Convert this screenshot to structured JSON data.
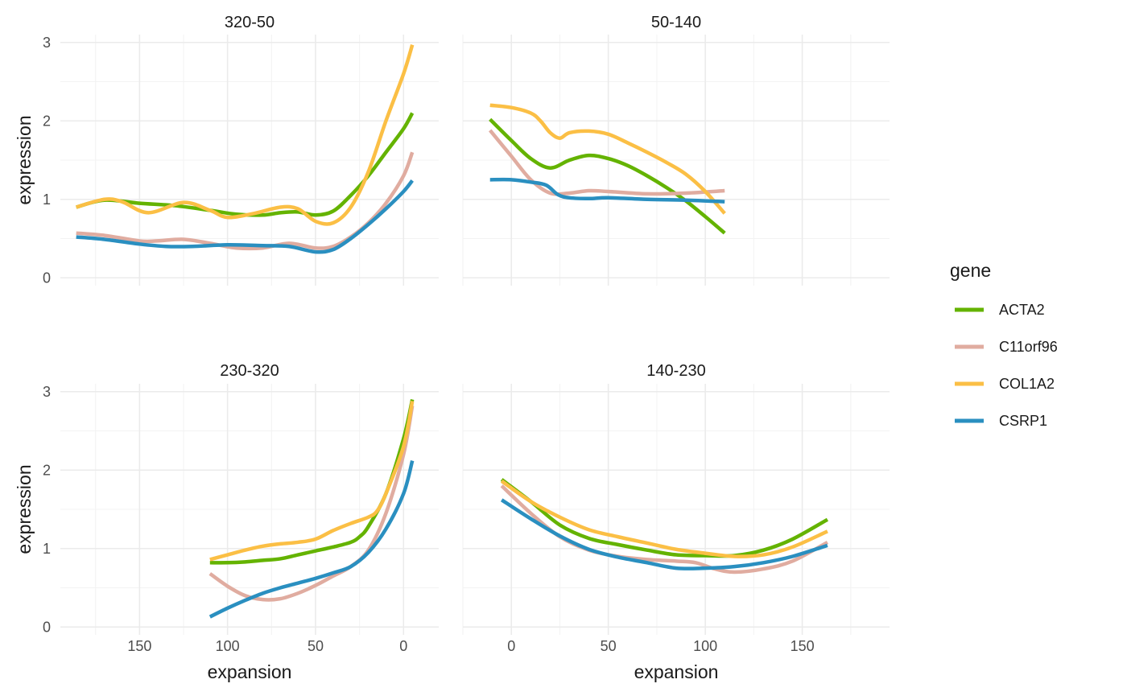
{
  "chart_data": {
    "type": "line",
    "facet_ylabel": "expression",
    "facet_xlabel": "expansion",
    "legend": {
      "title": "gene",
      "position": "right"
    },
    "colors": {
      "ACTA2": "#64B300",
      "C11orf96": "#E0ACA0",
      "COL1A2": "#FBBF45",
      "CSRP1": "#2A8FC0"
    },
    "grid": true,
    "facets": [
      {
        "title": "320-50",
        "x_reversed": true,
        "xlim": [
          195,
          -20
        ],
        "ylim": [
          -0.1,
          3.1
        ],
        "x_ticks": [
          150,
          100,
          50,
          0
        ],
        "y_ticks": [
          0,
          1,
          2,
          3
        ],
        "show_y_ticks": true,
        "show_x_ticks": false,
        "show_x_title": false,
        "series": [
          {
            "name": "ACTA2",
            "x": [
              186,
              170,
              150,
              130,
              110,
              95,
              80,
              70,
              60,
              50,
              40,
              30,
              20,
              10,
              0,
              -5
            ],
            "y": [
              0.9,
              0.99,
              0.95,
              0.92,
              0.86,
              0.81,
              0.8,
              0.83,
              0.84,
              0.8,
              0.85,
              1.05,
              1.3,
              1.6,
              1.9,
              2.1
            ]
          },
          {
            "name": "C11orf96",
            "x": [
              186,
              170,
              150,
              140,
              125,
              110,
              95,
              80,
              65,
              50,
              40,
              30,
              20,
              10,
              0,
              -5
            ],
            "y": [
              0.57,
              0.54,
              0.47,
              0.47,
              0.49,
              0.44,
              0.38,
              0.38,
              0.44,
              0.38,
              0.4,
              0.52,
              0.7,
              0.95,
              1.3,
              1.6
            ]
          },
          {
            "name": "COL1A2",
            "x": [
              186,
              170,
              160,
              145,
              125,
              110,
              100,
              85,
              70,
              60,
              50,
              40,
              30,
              20,
              10,
              0,
              -5
            ],
            "y": [
              0.9,
              1.0,
              0.97,
              0.83,
              0.96,
              0.86,
              0.77,
              0.82,
              0.9,
              0.88,
              0.72,
              0.7,
              0.9,
              1.35,
              2.0,
              2.6,
              2.97
            ]
          },
          {
            "name": "CSRP1",
            "x": [
              186,
              170,
              150,
              135,
              120,
              100,
              80,
              65,
              50,
              40,
              30,
              20,
              10,
              0,
              -5
            ],
            "y": [
              0.52,
              0.49,
              0.43,
              0.4,
              0.4,
              0.42,
              0.41,
              0.4,
              0.33,
              0.36,
              0.5,
              0.68,
              0.88,
              1.1,
              1.24
            ]
          }
        ]
      },
      {
        "title": "50-140",
        "x_reversed": false,
        "xlim": [
          -25,
          195
        ],
        "ylim": [
          -0.1,
          3.1
        ],
        "x_ticks": [
          0,
          50,
          100,
          150
        ],
        "y_ticks": [
          0,
          1,
          2,
          3
        ],
        "show_y_ticks": false,
        "show_x_ticks": false,
        "show_x_title": false,
        "series": [
          {
            "name": "ACTA2",
            "x": [
              -11,
              0,
              10,
              20,
              30,
              40,
              50,
              60,
              70,
              80,
              90,
              100,
              110
            ],
            "y": [
              2.02,
              1.75,
              1.52,
              1.4,
              1.5,
              1.56,
              1.52,
              1.43,
              1.3,
              1.15,
              0.98,
              0.78,
              0.57
            ]
          },
          {
            "name": "C11orf96",
            "x": [
              -11,
              0,
              10,
              20,
              30,
              40,
              50,
              70,
              90,
              110
            ],
            "y": [
              1.88,
              1.55,
              1.25,
              1.08,
              1.08,
              1.11,
              1.1,
              1.07,
              1.08,
              1.11
            ]
          },
          {
            "name": "COL1A2",
            "x": [
              -11,
              0,
              10,
              15,
              20,
              25,
              30,
              40,
              50,
              60,
              70,
              80,
              90,
              100,
              110
            ],
            "y": [
              2.2,
              2.17,
              2.1,
              2.0,
              1.85,
              1.78,
              1.85,
              1.87,
              1.83,
              1.72,
              1.6,
              1.47,
              1.32,
              1.1,
              0.82
            ]
          },
          {
            "name": "CSRP1",
            "x": [
              -11,
              0,
              10,
              18,
              24,
              30,
              40,
              50,
              70,
              90,
              110
            ],
            "y": [
              1.25,
              1.25,
              1.22,
              1.18,
              1.06,
              1.02,
              1.01,
              1.02,
              1.0,
              0.99,
              0.97
            ]
          }
        ]
      },
      {
        "title": "230-320",
        "x_reversed": true,
        "xlim": [
          195,
          -20
        ],
        "ylim": [
          -0.1,
          3.1
        ],
        "x_ticks": [
          150,
          100,
          50,
          0
        ],
        "y_ticks": [
          0,
          1,
          2,
          3
        ],
        "show_y_ticks": true,
        "show_x_ticks": true,
        "show_x_title": true,
        "series": [
          {
            "name": "ACTA2",
            "x": [
              110,
              100,
              90,
              80,
              70,
              60,
              50,
              40,
              30,
              25,
              20,
              10,
              0,
              -5
            ],
            "y": [
              0.82,
              0.82,
              0.83,
              0.85,
              0.87,
              0.92,
              0.97,
              1.02,
              1.08,
              1.15,
              1.28,
              1.7,
              2.4,
              2.9
            ]
          },
          {
            "name": "C11orf96",
            "x": [
              110,
              100,
              90,
              80,
              70,
              60,
              50,
              40,
              30,
              20,
              10,
              0,
              -5
            ],
            "y": [
              0.68,
              0.52,
              0.4,
              0.35,
              0.36,
              0.43,
              0.53,
              0.65,
              0.77,
              0.98,
              1.45,
              2.2,
              2.82
            ]
          },
          {
            "name": "COL1A2",
            "x": [
              110,
              100,
              90,
              80,
              70,
              60,
              50,
              40,
              30,
              20,
              15,
              10,
              0,
              -5
            ],
            "y": [
              0.86,
              0.92,
              0.98,
              1.03,
              1.06,
              1.08,
              1.12,
              1.23,
              1.32,
              1.4,
              1.48,
              1.7,
              2.3,
              2.88
            ]
          },
          {
            "name": "CSRP1",
            "x": [
              110,
              100,
              90,
              80,
              70,
              60,
              50,
              40,
              30,
              20,
              10,
              0,
              -5
            ],
            "y": [
              0.13,
              0.24,
              0.34,
              0.43,
              0.5,
              0.56,
              0.62,
              0.69,
              0.77,
              0.95,
              1.25,
              1.7,
              2.12
            ]
          }
        ]
      },
      {
        "title": "140-230",
        "x_reversed": false,
        "xlim": [
          -25,
          195
        ],
        "ylim": [
          -0.1,
          3.1
        ],
        "x_ticks": [
          0,
          50,
          100,
          150
        ],
        "y_ticks": [
          0,
          1,
          2,
          3
        ],
        "show_y_ticks": false,
        "show_x_ticks": true,
        "show_x_title": true,
        "series": [
          {
            "name": "ACTA2",
            "x": [
              -5,
              10,
              25,
              40,
              55,
              70,
              85,
              100,
              115,
              130,
              145,
              163
            ],
            "y": [
              1.88,
              1.6,
              1.3,
              1.13,
              1.05,
              0.98,
              0.92,
              0.91,
              0.91,
              0.98,
              1.12,
              1.37
            ]
          },
          {
            "name": "C11orf96",
            "x": [
              -5,
              10,
              25,
              40,
              55,
              70,
              85,
              95,
              105,
              115,
              130,
              145,
              163
            ],
            "y": [
              1.8,
              1.45,
              1.15,
              0.98,
              0.9,
              0.86,
              0.84,
              0.82,
              0.74,
              0.7,
              0.74,
              0.84,
              1.08
            ]
          },
          {
            "name": "COL1A2",
            "x": [
              -5,
              10,
              25,
              40,
              55,
              70,
              85,
              100,
              115,
              130,
              145,
              163
            ],
            "y": [
              1.86,
              1.6,
              1.4,
              1.24,
              1.15,
              1.07,
              0.99,
              0.94,
              0.9,
              0.92,
              1.02,
              1.22
            ]
          },
          {
            "name": "CSRP1",
            "x": [
              -5,
              10,
              25,
              40,
              55,
              70,
              85,
              100,
              115,
              130,
              145,
              163
            ],
            "y": [
              1.62,
              1.38,
              1.16,
              0.99,
              0.89,
              0.82,
              0.75,
              0.75,
              0.77,
              0.82,
              0.9,
              1.04
            ]
          }
        ]
      }
    ]
  }
}
